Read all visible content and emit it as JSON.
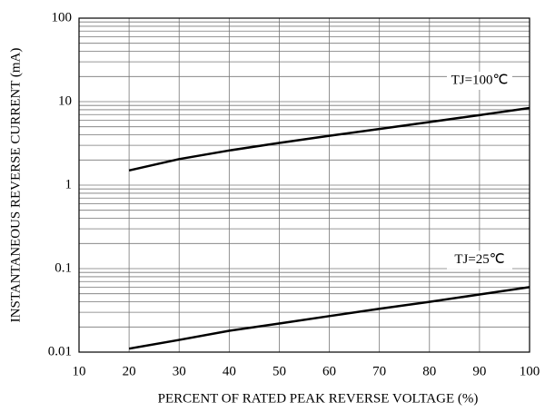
{
  "chart_data": {
    "type": "line",
    "xlabel": "PERCENT OF RATED PEAK REVERSE VOLTAGE (%)",
    "ylabel": "INSTANTANEOUS REVERSE CURRENT (mA)",
    "x": [
      20,
      30,
      40,
      50,
      60,
      70,
      80,
      90,
      100
    ],
    "series": [
      {
        "name": "TJ=100℃",
        "color": "#000000",
        "values": [
          1.5,
          2.05,
          2.6,
          3.2,
          3.9,
          4.7,
          5.7,
          6.9,
          8.4
        ]
      },
      {
        "name": "TJ=25℃",
        "color": "#000000",
        "values": [
          0.011,
          0.014,
          0.018,
          0.022,
          0.027,
          0.033,
          0.04,
          0.049,
          0.06
        ]
      }
    ],
    "xlim": [
      10,
      100
    ],
    "xticks": [
      10,
      20,
      30,
      40,
      50,
      60,
      70,
      80,
      90,
      100
    ],
    "ylim": [
      0.01,
      100
    ],
    "yticks": [
      0.01,
      0.1,
      1,
      10,
      100
    ],
    "yminorticks": [
      0.02,
      0.03,
      0.04,
      0.05,
      0.06,
      0.07,
      0.08,
      0.09,
      0.2,
      0.3,
      0.4,
      0.5,
      0.6,
      0.7,
      0.8,
      0.9,
      2,
      3,
      4,
      5,
      6,
      7,
      8,
      9,
      20,
      30,
      40,
      50,
      60,
      70,
      80,
      90
    ],
    "ylog": true,
    "grid": true
  }
}
